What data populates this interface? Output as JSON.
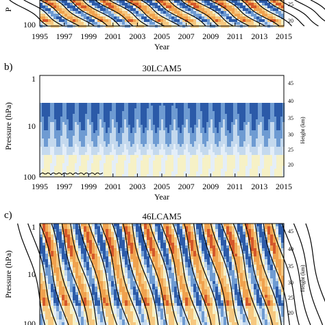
{
  "figure": {
    "colors": {
      "blue_dark": "#2b5aa8",
      "blue_mid": "#6e9bd2",
      "blue_light": "#c4d9ee",
      "blue_pale": "#e4eef8",
      "yellow_pale": "#f6f1c6",
      "orange_light": "#f6c880",
      "orange_mid": "#f0a24e",
      "red_dark": "#d4572a",
      "contour": "#000000"
    }
  },
  "chart_data": [
    {
      "panel_label": "",
      "type": "heatmap",
      "title": "",
      "xlabel": "Year",
      "ylabel": "P",
      "right_ylabel": "",
      "x_ticks": [
        "1995",
        "1997",
        "1999",
        "2001",
        "2003",
        "2005",
        "2007",
        "2009",
        "2011",
        "2013",
        "2015"
      ],
      "xlim": [
        1995,
        2015
      ],
      "y_ticks_left": [
        "100"
      ],
      "y_scale": "log",
      "ylim_hPa": [
        100,
        1
      ],
      "right_ticks": [
        "25",
        "20"
      ],
      "pattern": "downward-propagating alternating easterly/westerly bands (QBO)",
      "period_months": 28
    },
    {
      "panel_label": "b)",
      "type": "heatmap",
      "title": "30LCAM5",
      "xlabel": "Year",
      "ylabel": "Pressure (hPa)",
      "right_ylabel": "Height (km)",
      "x_ticks": [
        "1995",
        "1997",
        "1999",
        "2001",
        "2003",
        "2005",
        "2007",
        "2009",
        "2011",
        "2013",
        "2015"
      ],
      "xlim": [
        1995,
        2015
      ],
      "y_ticks_left": [
        "1",
        "10",
        "100"
      ],
      "y_scale": "log",
      "ylim_hPa": [
        100,
        1
      ],
      "right_ticks": [
        "45",
        "40",
        "35",
        "30",
        "25",
        "20"
      ],
      "pattern": "no QBO: annual-cycle easterlies below ~3 hPa, weak near-zero winds below",
      "period_months": 12
    },
    {
      "panel_label": "c)",
      "type": "heatmap",
      "title": "46LCAM5",
      "xlabel": "",
      "ylabel": "Pressure (hPa)",
      "right_ylabel": "Height (km)",
      "x_ticks": [],
      "xlim": [
        1995,
        2015
      ],
      "y_ticks_left": [
        "1",
        "10",
        "100"
      ],
      "y_scale": "log",
      "ylim_hPa": [
        100,
        1
      ],
      "right_ticks": [
        "45",
        "40",
        "35",
        "30",
        "25",
        "20"
      ],
      "pattern": "downward-propagating alternating easterly/westerly bands (QBO-like)",
      "period_months": 20
    }
  ]
}
